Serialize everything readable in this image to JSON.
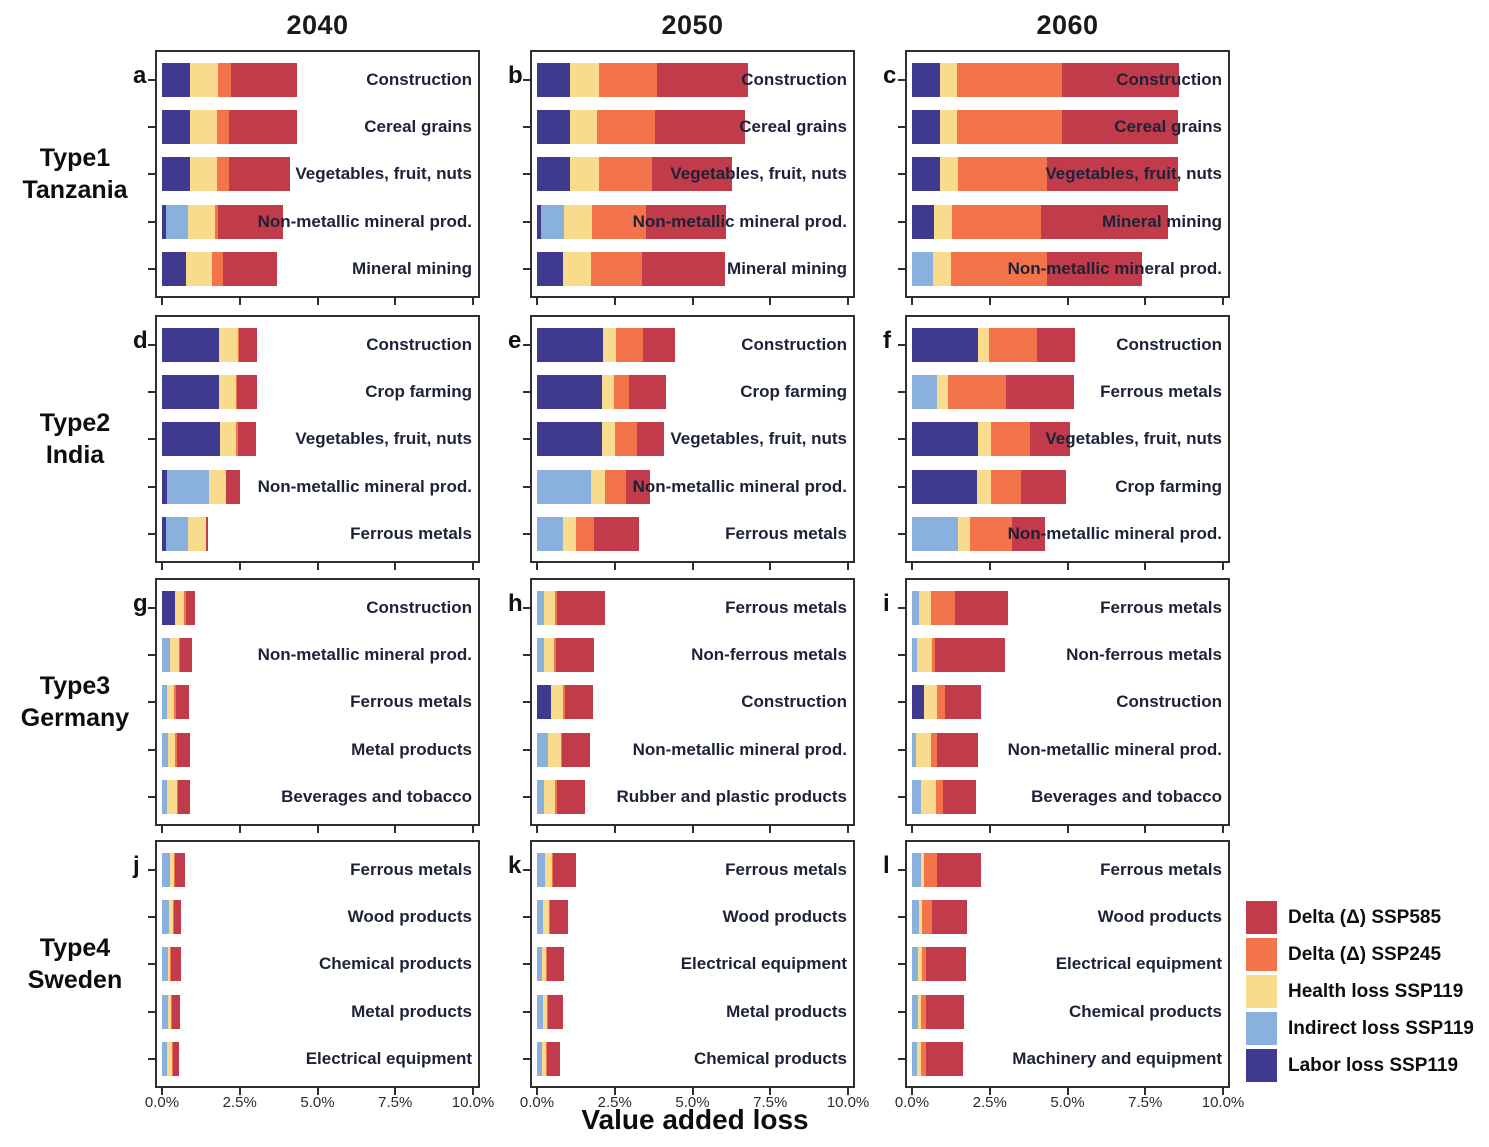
{
  "chart_data": {
    "type": "bar",
    "orientation": "horizontal",
    "stacked": true,
    "grid": false,
    "xlabel": "Value added loss",
    "xlim": [
      0,
      10
    ],
    "x_ticks": [
      "0.0%",
      "2.5%",
      "5.0%",
      "7.5%",
      "10.0%"
    ],
    "x_tick_values": [
      0,
      2.5,
      5,
      7.5,
      10
    ],
    "columns": [
      "2040",
      "2050",
      "2060"
    ],
    "series_order": [
      "labor",
      "indirect",
      "health",
      "ssp245",
      "ssp585"
    ],
    "series_colors": {
      "labor": "#3f3a8e",
      "indirect": "#8ab0de",
      "health": "#f8db8d",
      "ssp245": "#f3744a",
      "ssp585": "#c23b4b"
    },
    "legend_position": "bottom-right",
    "legend": [
      {
        "key": "ssp585",
        "label": "Delta (Δ) SSP585"
      },
      {
        "key": "ssp245",
        "label": "Delta (Δ) SSP245"
      },
      {
        "key": "health",
        "label": "Health loss SSP119"
      },
      {
        "key": "indirect",
        "label": "Indirect loss SSP119"
      },
      {
        "key": "labor",
        "label": "Labor loss SSP119"
      }
    ],
    "rows": [
      {
        "type_label": "Type1",
        "country": "Tanzania",
        "panels": [
          {
            "letter": "a",
            "year": "2040",
            "bars": [
              {
                "label": "Construction",
                "values": [
                  0.9,
                  0,
                  0.89,
                  0.43,
                  2.12
                ]
              },
              {
                "label": "Cereal grains",
                "values": [
                  0.9,
                  0,
                  0.86,
                  0.39,
                  2.19
                ]
              },
              {
                "label": "Vegetables, fruit, nuts",
                "values": [
                  0.9,
                  0,
                  0.86,
                  0.39,
                  1.98
                ]
              },
              {
                "label": "Non-metallic mineral prod.",
                "values": [
                  0.13,
                  0.72,
                  0.85,
                  0.11,
                  2.07
                ]
              },
              {
                "label": "Mineral mining",
                "values": [
                  0.77,
                  0,
                  0.85,
                  0.35,
                  1.73
                ]
              }
            ]
          },
          {
            "letter": "b",
            "year": "2050",
            "bars": [
              {
                "label": "Construction",
                "values": [
                  1.05,
                  0,
                  0.94,
                  1.88,
                  2.91
                ]
              },
              {
                "label": "Cereal grains",
                "values": [
                  1.05,
                  0,
                  0.89,
                  1.85,
                  2.91
                ]
              },
              {
                "label": "Vegetables, fruit, nuts",
                "values": [
                  1.07,
                  0,
                  0.92,
                  1.72,
                  2.55
                ]
              },
              {
                "label": "Non-metallic mineral prod.",
                "values": [
                  0.12,
                  0.76,
                  0.9,
                  1.73,
                  2.58
                ]
              },
              {
                "label": "Mineral mining",
                "values": [
                  0.85,
                  0,
                  0.9,
                  1.62,
                  2.67
                ]
              }
            ]
          },
          {
            "letter": "c",
            "year": "2060",
            "bars": [
              {
                "label": "Construction",
                "values": [
                  0.89,
                  0,
                  0.56,
                  3.38,
                  3.76
                ]
              },
              {
                "label": "Cereal grains",
                "values": [
                  0.89,
                  0,
                  0.56,
                  3.38,
                  3.73
                ]
              },
              {
                "label": "Vegetables, fruit, nuts",
                "values": [
                  0.91,
                  0,
                  0.57,
                  2.87,
                  4.21
                ]
              },
              {
                "label": "Mineral mining",
                "values": [
                  0.7,
                  0,
                  0.6,
                  2.84,
                  4.08
                ]
              },
              {
                "label": "Non-metallic mineral prod.",
                "values": [
                  0,
                  0.67,
                  0.58,
                  3.1,
                  3.06
                ]
              }
            ]
          }
        ]
      },
      {
        "type_label": "Type2",
        "country": "India",
        "panels": [
          {
            "letter": "d",
            "year": "2040",
            "bars": [
              {
                "label": "Construction",
                "values": [
                  1.84,
                  0,
                  0.6,
                  0.05,
                  0.57
                ]
              },
              {
                "label": "Crop farming",
                "values": [
                  1.84,
                  0,
                  0.53,
                  0.05,
                  0.64
                ]
              },
              {
                "label": "Vegetables, fruit, nuts",
                "values": [
                  1.86,
                  0,
                  0.53,
                  0.05,
                  0.57
                ]
              },
              {
                "label": "Non-metallic mineral prod.",
                "values": [
                  0.17,
                  1.35,
                  0.53,
                  0,
                  0.46
                ]
              },
              {
                "label": "Ferrous metals",
                "values": [
                  0.14,
                  0.71,
                  0.58,
                  0,
                  0.06
                ]
              }
            ]
          },
          {
            "letter": "e",
            "year": "2050",
            "bars": [
              {
                "label": "Construction",
                "values": [
                  2.12,
                  0,
                  0.42,
                  0.88,
                  1.01
                ]
              },
              {
                "label": "Crop farming",
                "values": [
                  2.08,
                  0,
                  0.39,
                  0.5,
                  1.19
                ]
              },
              {
                "label": "Vegetables, fruit, nuts",
                "values": [
                  2.1,
                  0,
                  0.4,
                  0.71,
                  0.88
                ]
              },
              {
                "label": "Non-metallic mineral prod.",
                "values": [
                  0,
                  1.75,
                  0.43,
                  0.68,
                  0.77
                ]
              },
              {
                "label": "Ferrous metals",
                "values": [
                  0,
                  0.83,
                  0.42,
                  0.58,
                  1.45
                ]
              }
            ]
          },
          {
            "letter": "f",
            "year": "2060",
            "bars": [
              {
                "label": "Construction",
                "values": [
                  2.12,
                  0,
                  0.35,
                  1.56,
                  1.22
                ]
              },
              {
                "label": "Ferrous metals",
                "values": [
                  0,
                  0.79,
                  0.38,
                  1.86,
                  2.17
                ]
              },
              {
                "label": "Vegetables, fruit, nuts",
                "values": [
                  2.12,
                  0,
                  0.42,
                  1.25,
                  1.29
                ]
              },
              {
                "label": "Crop farming",
                "values": [
                  2.08,
                  0,
                  0.46,
                  0.95,
                  1.47
                ]
              },
              {
                "label": "Non-metallic mineral prod.",
                "values": [
                  0,
                  1.48,
                  0.38,
                  1.35,
                  1.06
                ]
              }
            ]
          }
        ]
      },
      {
        "type_label": "Type3",
        "country": "Germany",
        "panels": [
          {
            "letter": "g",
            "year": "2040",
            "bars": [
              {
                "label": "Construction",
                "values": [
                  0.43,
                  0,
                  0.27,
                  0.06,
                  0.31
                ]
              },
              {
                "label": "Non-metallic mineral prod.",
                "values": [
                  0,
                  0.25,
                  0.29,
                  0.05,
                  0.38
                ]
              },
              {
                "label": "Ferrous metals",
                "values": [
                  0,
                  0.16,
                  0.24,
                  0.04,
                  0.44
                ]
              },
              {
                "label": "Metal products",
                "values": [
                  0,
                  0.19,
                  0.24,
                  0.04,
                  0.44
                ]
              },
              {
                "label": "Beverages and tobacco",
                "values": [
                  0,
                  0.16,
                  0.31,
                  0.04,
                  0.4
                ]
              }
            ]
          },
          {
            "letter": "h",
            "year": "2050",
            "bars": [
              {
                "label": "Ferrous metals",
                "values": [
                  0,
                  0.21,
                  0.38,
                  0.05,
                  1.56
                ]
              },
              {
                "label": "Non-ferrous metals",
                "values": [
                  0,
                  0.21,
                  0.35,
                  0.05,
                  1.22
                ]
              },
              {
                "label": "Construction",
                "values": [
                  0.46,
                  0,
                  0.39,
                  0.04,
                  0.91
                ]
              },
              {
                "label": "Non-metallic mineral prod.",
                "values": [
                  0,
                  0.35,
                  0.42,
                  0.04,
                  0.88
                ]
              },
              {
                "label": "Rubber and plastic products",
                "values": [
                  0,
                  0.21,
                  0.38,
                  0.04,
                  0.92
                ]
              }
            ]
          },
          {
            "letter": "i",
            "year": "2060",
            "bars": [
              {
                "label": "Ferrous metals",
                "values": [
                  0,
                  0.21,
                  0.4,
                  0.78,
                  1.69
                ]
              },
              {
                "label": "Non-ferrous metals",
                "values": [
                  0,
                  0.17,
                  0.47,
                  0.1,
                  2.26
                ]
              },
              {
                "label": "Construction",
                "values": [
                  0.38,
                  0,
                  0.43,
                  0.25,
                  1.17
                ]
              },
              {
                "label": "Non-metallic mineral prod.",
                "values": [
                  0,
                  0.14,
                  0.47,
                  0.18,
                  1.34
                ]
              },
              {
                "label": "Beverages and tobacco",
                "values": [
                  0,
                  0.28,
                  0.49,
                  0.22,
                  1.06
                ]
              }
            ]
          }
        ]
      },
      {
        "type_label": "Type4",
        "country": "Sweden",
        "panels": [
          {
            "letter": "j",
            "year": "2040",
            "bars": [
              {
                "label": "Ferrous metals",
                "values": [
                  0,
                  0.25,
                  0.14,
                  0.03,
                  0.33
                ]
              },
              {
                "label": "Wood products",
                "values": [
                  0,
                  0.21,
                  0.14,
                  0.03,
                  0.24
                ]
              },
              {
                "label": "Chemical products",
                "values": [
                  0,
                  0.19,
                  0.08,
                  0.03,
                  0.3
                ]
              },
              {
                "label": "Metal products",
                "values": [
                  0,
                  0.19,
                  0.11,
                  0.03,
                  0.26
                ]
              },
              {
                "label": "Electrical equipment",
                "values": [
                  0,
                  0.17,
                  0.15,
                  0.03,
                  0.21
                ]
              }
            ]
          },
          {
            "letter": "k",
            "year": "2050",
            "bars": [
              {
                "label": "Ferrous metals",
                "values": [
                  0,
                  0.27,
                  0.22,
                  0.04,
                  0.73
                ]
              },
              {
                "label": "Wood products",
                "values": [
                  0,
                  0.19,
                  0.19,
                  0.03,
                  0.58
                ]
              },
              {
                "label": "Electrical equipment",
                "values": [
                  0,
                  0.17,
                  0.13,
                  0.03,
                  0.53
                ]
              },
              {
                "label": "Metal products",
                "values": [
                  0,
                  0.19,
                  0.14,
                  0.03,
                  0.47
                ]
              },
              {
                "label": "Chemical products",
                "values": [
                  0,
                  0.17,
                  0.13,
                  0.03,
                  0.41
                ]
              }
            ]
          },
          {
            "letter": "l",
            "year": "2060",
            "bars": [
              {
                "label": "Ferrous metals",
                "values": [
                  0,
                  0.28,
                  0.1,
                  0.43,
                  1.4
                ]
              },
              {
                "label": "Wood products",
                "values": [
                  0,
                  0.22,
                  0.1,
                  0.32,
                  1.13
                ]
              },
              {
                "label": "Electrical equipment",
                "values": [
                  0,
                  0.19,
                  0.13,
                  0.14,
                  1.27
                ]
              },
              {
                "label": "Chemical products",
                "values": [
                  0,
                  0.19,
                  0.11,
                  0.16,
                  1.2
                ]
              },
              {
                "label": "Machinery and equipment",
                "values": [
                  0,
                  0.17,
                  0.13,
                  0.16,
                  1.17
                ]
              }
            ]
          }
        ]
      }
    ]
  }
}
